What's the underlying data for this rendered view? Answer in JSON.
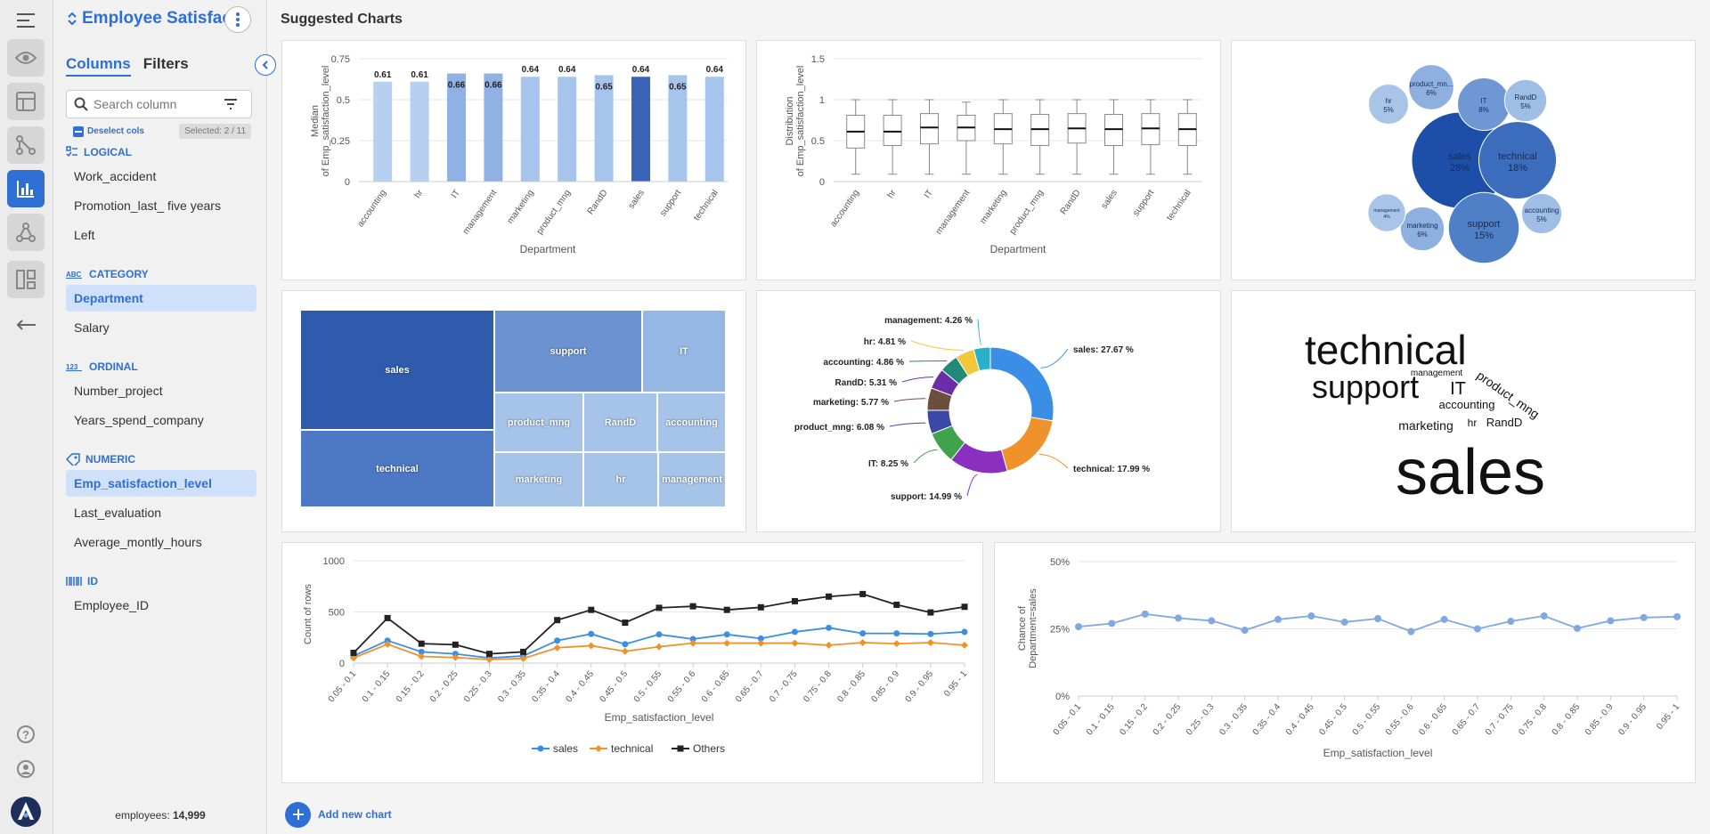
{
  "sidebar": {
    "dataset_title": "Employee Satisfac...",
    "tabs": [
      "Columns",
      "Filters"
    ],
    "search_placeholder": "Search column",
    "deselect_label": "Deselect cols",
    "selected_label": "Selected: 2 / 11",
    "groups": [
      {
        "type": "LOGICAL",
        "items": [
          "Work_accident",
          "Promotion_last_ five years",
          "Left"
        ]
      },
      {
        "type": "CATEGORY",
        "items": [
          "Department",
          "Salary"
        ]
      },
      {
        "type": "ORDINAL",
        "items": [
          "Number_project",
          "Years_spend_company"
        ]
      },
      {
        "type": "NUMERIC",
        "items": [
          "Emp_satisfaction_level",
          "Last_evaluation",
          "Average_montly_hours"
        ]
      },
      {
        "type": "ID",
        "items": [
          "Employee_ID"
        ]
      }
    ],
    "selected_items": [
      "Department",
      "Emp_satisfaction_level"
    ],
    "footer_label": "employees:",
    "footer_value": "14,999"
  },
  "main": {
    "title": "Suggested Charts",
    "add_chart_label": "Add new chart"
  },
  "colors": {
    "accent": "#2e6fd6",
    "sales": "#3a8ee6",
    "technical": "#f0922b",
    "others": "#222222",
    "bar_light": "#b5d0f0",
    "bar_dark": "#3a63b8"
  },
  "chart_data": [
    {
      "type": "bar",
      "categories": [
        "accounting",
        "hr",
        "IT",
        "management",
        "marketing",
        "product_mng",
        "RandD",
        "sales",
        "support",
        "technical"
      ],
      "values": [
        0.61,
        0.61,
        0.66,
        0.66,
        0.64,
        0.64,
        0.65,
        0.64,
        0.65,
        0.64
      ],
      "xlabel": "Department",
      "ylabel": "Median of Emp_satisfaction_level",
      "ylim": [
        0,
        0.75
      ],
      "yticks": [
        "0",
        "0.25",
        "0.5",
        "0.75"
      ]
    },
    {
      "type": "box",
      "categories": [
        "accounting",
        "hr",
        "IT",
        "management",
        "marketing",
        "product_mng",
        "RandD",
        "sales",
        "support",
        "technical"
      ],
      "boxes": [
        {
          "min": 0.09,
          "q1": 0.41,
          "median": 0.61,
          "q3": 0.81,
          "max": 1.0
        },
        {
          "min": 0.09,
          "q1": 0.44,
          "median": 0.61,
          "q3": 0.81,
          "max": 1.0
        },
        {
          "min": 0.09,
          "q1": 0.46,
          "median": 0.66,
          "q3": 0.83,
          "max": 1.0
        },
        {
          "min": 0.09,
          "q1": 0.5,
          "median": 0.66,
          "q3": 0.81,
          "max": 0.97
        },
        {
          "min": 0.09,
          "q1": 0.46,
          "median": 0.64,
          "q3": 0.83,
          "max": 1.0
        },
        {
          "min": 0.09,
          "q1": 0.44,
          "median": 0.64,
          "q3": 0.82,
          "max": 1.0
        },
        {
          "min": 0.09,
          "q1": 0.47,
          "median": 0.65,
          "q3": 0.83,
          "max": 1.0
        },
        {
          "min": 0.09,
          "q1": 0.44,
          "median": 0.64,
          "q3": 0.82,
          "max": 1.0
        },
        {
          "min": 0.09,
          "q1": 0.45,
          "median": 0.65,
          "q3": 0.83,
          "max": 1.0
        },
        {
          "min": 0.09,
          "q1": 0.44,
          "median": 0.64,
          "q3": 0.83,
          "max": 1.0
        }
      ],
      "xlabel": "Department",
      "ylabel": "Distribution of Emp_satisfaction_level",
      "ylim": [
        0,
        1.5
      ],
      "yticks": [
        "0",
        "0.5",
        "1",
        "1.5"
      ]
    },
    {
      "type": "bubble",
      "items": [
        {
          "label": "sales",
          "pct": "28%",
          "value": 27.67
        },
        {
          "label": "technical",
          "pct": "18%",
          "value": 17.99
        },
        {
          "label": "support",
          "pct": "15%",
          "value": 14.99
        },
        {
          "label": "IT",
          "pct": "8%",
          "value": 8.25
        },
        {
          "label": "product_mn...",
          "pct": "6%",
          "value": 6.08
        },
        {
          "label": "marketing",
          "pct": "6%",
          "value": 5.77
        },
        {
          "label": "RandD",
          "pct": "5%",
          "value": 5.31
        },
        {
          "label": "accounting",
          "pct": "5%",
          "value": 4.86
        },
        {
          "label": "hr",
          "pct": "5%",
          "value": 4.81
        },
        {
          "label": "management",
          "pct": "4%",
          "value": 4.26
        }
      ]
    },
    {
      "type": "treemap",
      "items": [
        "sales",
        "technical",
        "support",
        "IT",
        "product_mng",
        "RandD",
        "accounting",
        "marketing",
        "hr",
        "management"
      ]
    },
    {
      "type": "pie",
      "slices": [
        {
          "label": "sales",
          "value": 27.67,
          "text": "sales: 27.67 %",
          "color": "#3a8ee6"
        },
        {
          "label": "technical",
          "value": 17.99,
          "text": "technical: 17.99 %",
          "color": "#f0922b"
        },
        {
          "label": "support",
          "value": 14.99,
          "text": "support: 14.99 %",
          "color": "#8a2fc0"
        },
        {
          "label": "IT",
          "value": 8.25,
          "text": "IT: 8.25 %",
          "color": "#3fa34d"
        },
        {
          "label": "product_mng",
          "value": 6.08,
          "text": "product_mng: 6.08 %",
          "color": "#3b48a8"
        },
        {
          "label": "marketing",
          "value": 5.77,
          "text": "marketing: 5.77 %",
          "color": "#6b4e3d"
        },
        {
          "label": "RandD",
          "value": 5.31,
          "text": "RandD: 5.31 %",
          "color": "#6a2fa6"
        },
        {
          "label": "accounting",
          "value": 4.86,
          "text": "accounting: 4.86 %",
          "color": "#1f8a78"
        },
        {
          "label": "hr",
          "value": 4.81,
          "text": "hr: 4.81 %",
          "color": "#f3c73b"
        },
        {
          "label": "management",
          "value": 4.26,
          "text": "management: 4.26 %",
          "color": "#2bb0c7"
        }
      ]
    },
    {
      "type": "wordcloud",
      "words": [
        "technical",
        "support",
        "management",
        "product_mng",
        "IT",
        "accounting",
        "marketing",
        "hr",
        "RandD",
        "sales"
      ]
    },
    {
      "type": "line",
      "categories": [
        "0.05 - 0.1",
        "0.1 - 0.15",
        "0.15 - 0.2",
        "0.2 - 0.25",
        "0.25 - 0.3",
        "0.3 - 0.35",
        "0.35 - 0.4",
        "0.4 - 0.45",
        "0.45 - 0.5",
        "0.5 - 0.55",
        "0.55 - 0.6",
        "0.6 - 0.65",
        "0.65 - 0.7",
        "0.7 - 0.75",
        "0.75 - 0.8",
        "0.8 - 0.85",
        "0.85 - 0.9",
        "0.9 - 0.95",
        "0.95 - 1"
      ],
      "series": [
        {
          "name": "sales",
          "values": [
            70,
            220,
            110,
            90,
            50,
            70,
            220,
            285,
            185,
            280,
            235,
            280,
            240,
            305,
            345,
            290,
            290,
            285,
            305
          ]
        },
        {
          "name": "technical",
          "values": [
            50,
            185,
            65,
            55,
            35,
            45,
            150,
            170,
            115,
            160,
            195,
            195,
            195,
            195,
            175,
            200,
            190,
            200,
            175
          ]
        },
        {
          "name": "Others",
          "values": [
            100,
            440,
            190,
            180,
            90,
            110,
            420,
            520,
            395,
            540,
            555,
            520,
            545,
            605,
            650,
            675,
            570,
            495,
            550
          ]
        }
      ],
      "xlabel": "Emp_satisfaction_level",
      "ylabel": "Count of rows",
      "ylim": [
        0,
        1000
      ],
      "yticks": [
        "0",
        "500",
        "1000"
      ]
    },
    {
      "type": "line",
      "categories": [
        "0.05 - 0.1",
        "0.1 - 0.15",
        "0.15 - 0.2",
        "0.2 - 0.25",
        "0.25 - 0.3",
        "0.3 - 0.35",
        "0.35 - 0.4",
        "0.4 - 0.45",
        "0.45 - 0.5",
        "0.5 - 0.55",
        "0.55 - 0.6",
        "0.6 - 0.65",
        "0.65 - 0.7",
        "0.7 - 0.75",
        "0.75 - 0.8",
        "0.8 - 0.85",
        "0.85 - 0.9",
        "0.9 - 0.95",
        "0.95 - 1"
      ],
      "series": [
        {
          "name": "Department=sales",
          "values": [
            25.8,
            27.0,
            30.5,
            29.0,
            28.0,
            24.5,
            28.5,
            29.8,
            27.5,
            28.8,
            24.0,
            28.5,
            25.0,
            27.8,
            29.8,
            25.2,
            28.0,
            29.2,
            29.5
          ]
        }
      ],
      "xlabel": "Emp_satisfaction_level",
      "ylabel": "Chance of Department=sales",
      "ylim": [
        0,
        50
      ],
      "yticks": [
        "0%",
        "25%",
        "50%"
      ]
    }
  ]
}
